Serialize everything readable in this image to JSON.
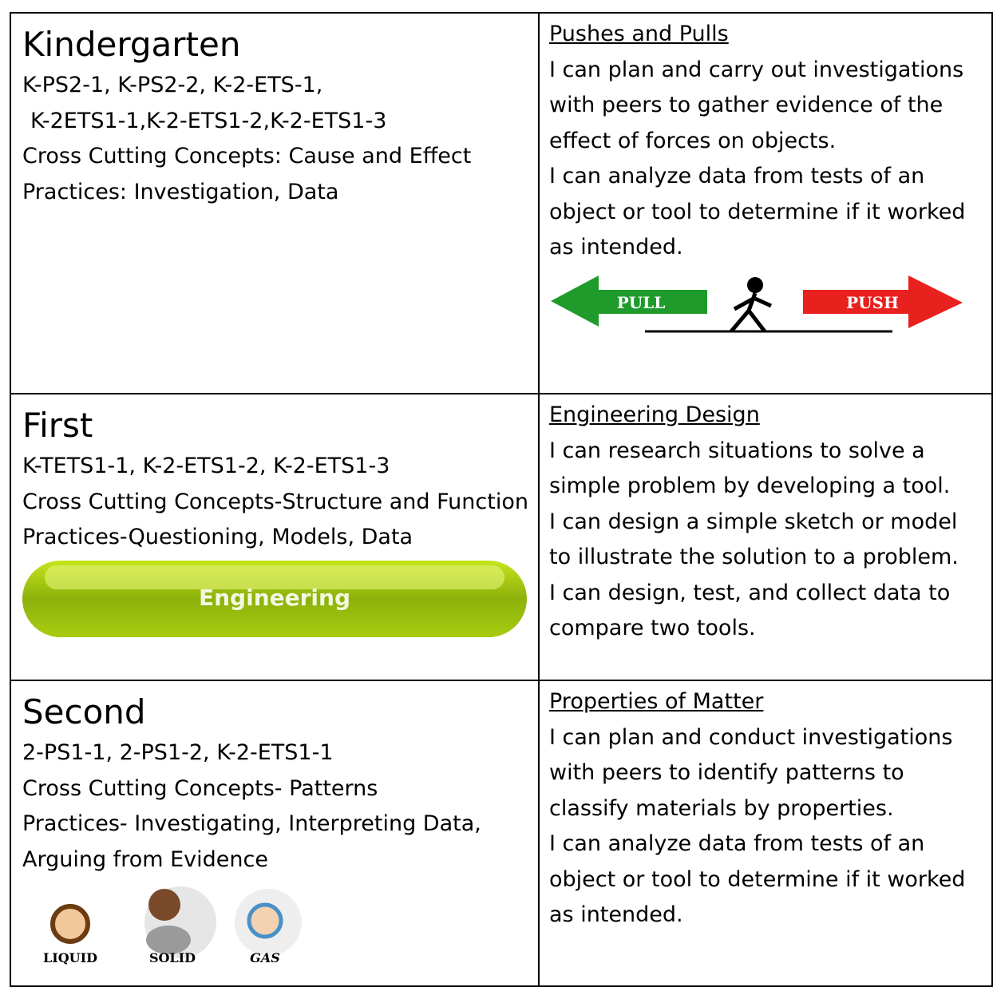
{
  "rows": [
    {
      "grade": "Kindergarten",
      "details": [
        "K-PS2-1, K-PS2-2, K-2-ETS-1,",
        "K-2ETS1-1,K-2-ETS1-2,K-2-ETS1-3",
        "Cross Cutting Concepts: Cause and Effect",
        "Practices: Investigation, Data"
      ],
      "topic": "Pushes and Pulls",
      "statements": [
        "I can plan and carry out investigations with peers to gather evidence of the effect of forces on objects.",
        "I can analyze data from tests of an object or tool to determine if it worked as intended."
      ],
      "image_labels": [
        "PULL",
        "PUSH"
      ]
    },
    {
      "grade": "First",
      "details": [
        "K-TETS1-1, K-2-ETS1-2, K-2-ETS1-3",
        "Cross Cutting Concepts-Structure and Function",
        "Practices-Questioning, Models, Data"
      ],
      "topic": "Engineering Design",
      "statements": [
        "I can research situations to solve a simple problem by developing a tool.",
        "I can design a simple sketch or model to illustrate the solution to a problem.",
        "I can design, test, and collect data to compare two tools."
      ],
      "image_labels": [
        "Engineering"
      ]
    },
    {
      "grade": "Second",
      "details": [
        "2-PS1-1, 2-PS1-2, K-2-ETS1-1",
        "Cross Cutting Concepts- Patterns",
        "Practices- Investigating, Interpreting Data, Arguing from Evidence"
      ],
      "topic": "Properties of Matter",
      "statements": [
        "I can plan and conduct investigations with peers to identify patterns to classify materials by properties.",
        "I can analyze data from tests of an object or tool to determine if it worked as intended."
      ],
      "image_labels": [
        "LIQUID",
        "SOLID",
        "GAS"
      ]
    }
  ]
}
